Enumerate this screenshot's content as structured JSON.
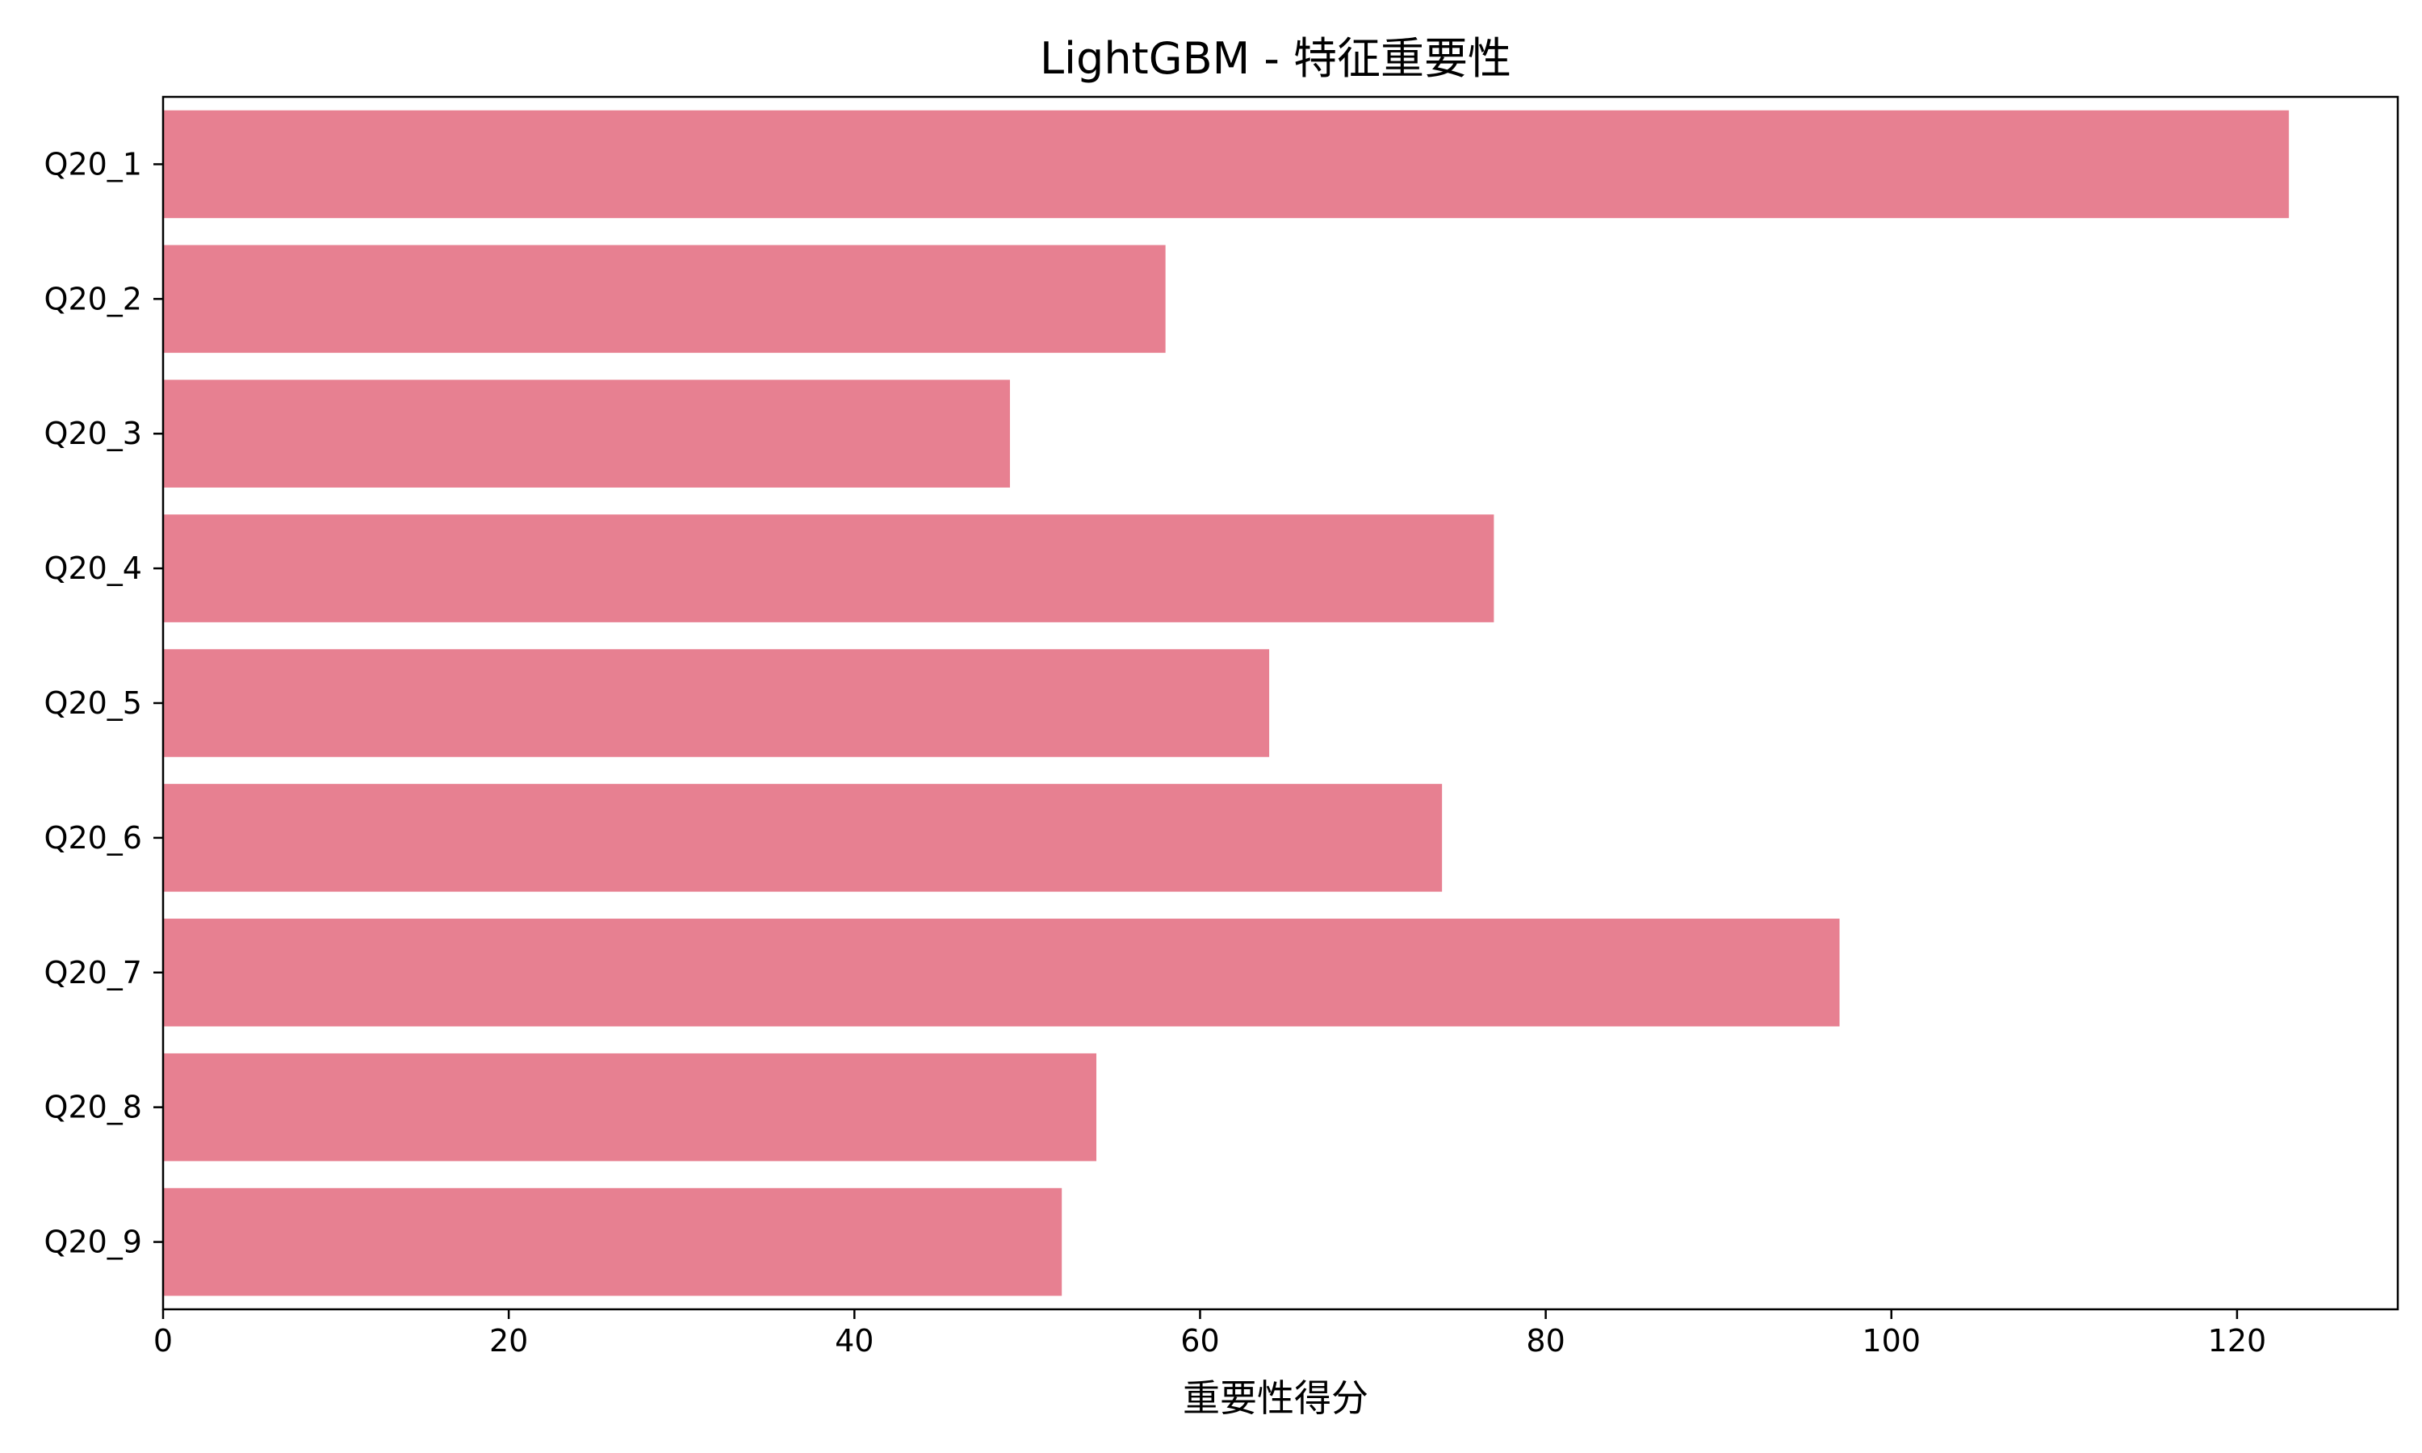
{
  "chart_data": {
    "type": "bar",
    "orientation": "horizontal",
    "title": "LightGBM - 特征重要性",
    "xlabel": "重要性得分",
    "ylabel": "",
    "categories": [
      "Q20_1",
      "Q20_2",
      "Q20_3",
      "Q20_4",
      "Q20_5",
      "Q20_6",
      "Q20_7",
      "Q20_8",
      "Q20_9"
    ],
    "values": [
      123,
      58,
      49,
      77,
      64,
      74,
      97,
      54,
      52
    ],
    "xlim": [
      0,
      129.3
    ],
    "xticks": [
      0,
      20,
      40,
      60,
      80,
      100,
      120
    ],
    "bar_color": "#e78091",
    "grid": false,
    "legend": "none"
  }
}
